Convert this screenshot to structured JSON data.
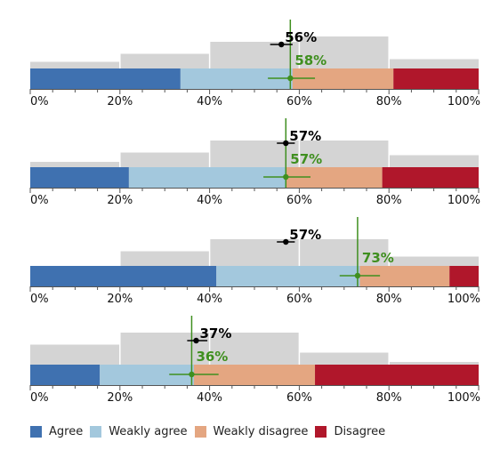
{
  "chart_data": {
    "type": "bar",
    "stacked": true,
    "orientation": "horizontal",
    "x_ticks": [
      "0%",
      "20%",
      "40%",
      "60%",
      "80%",
      "100%"
    ],
    "xlim": [
      0,
      100
    ],
    "categories_legend": [
      "Agree",
      "Weakly agree",
      "Weakly disagree",
      "Disagree"
    ],
    "colors": {
      "Agree": "#3f71b0",
      "Weakly agree": "#a3c8dd",
      "Weakly disagree": "#e4a681",
      "Disagree": "#b0172b",
      "background_bins": "#d4d4d4",
      "black_estimate": "#000000",
      "green_estimate": "#3f8f1f"
    },
    "panels": [
      {
        "segments": [
          33.5,
          25,
          22.5,
          19
        ],
        "bin_heights": [
          0.25,
          0.55,
          1.0,
          1.2,
          0.35
        ],
        "black_value": 56,
        "black_label": "56%",
        "black_err": [
          53.5,
          58.5
        ],
        "green_value": 58,
        "green_label": "58%",
        "green_err": [
          53,
          63.5
        ]
      },
      {
        "segments": [
          22,
          35,
          21.5,
          21.5
        ],
        "bin_heights": [
          0.2,
          0.55,
          1.0,
          1.0,
          0.45
        ],
        "black_value": 57,
        "black_label": "57%",
        "black_err": [
          55,
          59
        ],
        "green_value": 57,
        "green_label": "57%",
        "green_err": [
          52,
          62.5
        ]
      },
      {
        "segments": [
          41.5,
          32,
          20,
          6.5
        ],
        "bin_heights": [
          0.0,
          0.55,
          1.0,
          1.0,
          0.35
        ],
        "black_value": 57,
        "black_label": "57%",
        "black_err": [
          55,
          59
        ],
        "green_value": 73,
        "green_label": "73%",
        "green_err": [
          69,
          78
        ]
      },
      {
        "segments": [
          15.5,
          21,
          27,
          36.5
        ],
        "bin_heights": [
          0.75,
          1.2,
          1.2,
          0.45,
          0.1
        ],
        "black_value": 37,
        "black_label": "37%",
        "black_err": [
          35,
          39.5
        ],
        "green_value": 36,
        "green_label": "36%",
        "green_err": [
          31,
          42
        ]
      }
    ]
  }
}
